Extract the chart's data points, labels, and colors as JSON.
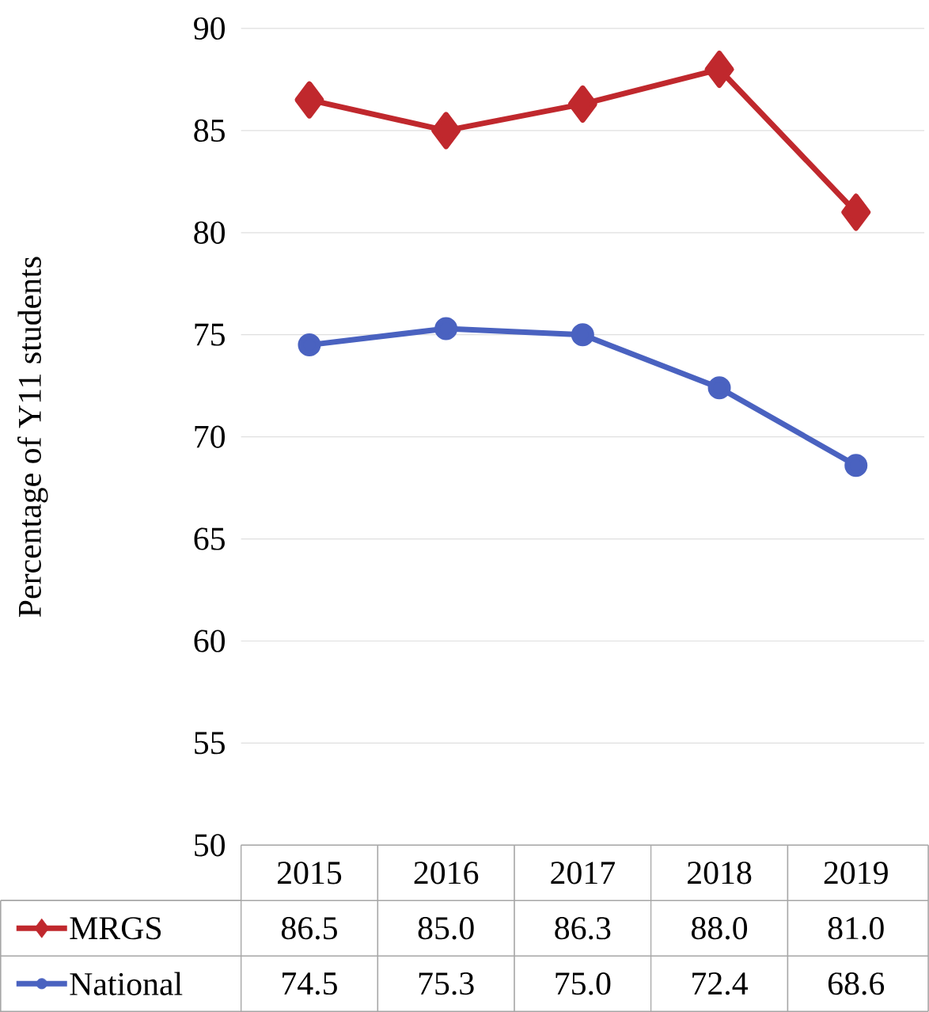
{
  "chart_data": {
    "type": "line",
    "ylabel": "Percentage of Y11 students",
    "categories": [
      "2015",
      "2016",
      "2017",
      "2018",
      "2019"
    ],
    "series": [
      {
        "name": "MRGS",
        "color": "#c0282d",
        "marker": "diamond",
        "values": [
          86.5,
          85.0,
          86.3,
          88.0,
          81.0
        ],
        "value_labels": [
          "86.5",
          "85.0",
          "86.3",
          "88.0",
          "81.0"
        ]
      },
      {
        "name": "National",
        "color": "#4a62c0",
        "marker": "circle",
        "values": [
          74.5,
          75.3,
          75.0,
          72.4,
          68.6
        ],
        "value_labels": [
          "74.5",
          "75.3",
          "75.0",
          "72.4",
          "68.6"
        ]
      }
    ],
    "ylim": [
      50,
      90
    ],
    "yticks": [
      {
        "value": 50,
        "label": "50"
      },
      {
        "value": 55,
        "label": "55"
      },
      {
        "value": 60,
        "label": "60"
      },
      {
        "value": 65,
        "label": "65"
      },
      {
        "value": 70,
        "label": "70"
      },
      {
        "value": 75,
        "label": "75"
      },
      {
        "value": 80,
        "label": "80"
      },
      {
        "value": 85,
        "label": "85"
      },
      {
        "value": 90,
        "label": "90"
      }
    ],
    "grid": "y",
    "legend": "bottom"
  }
}
